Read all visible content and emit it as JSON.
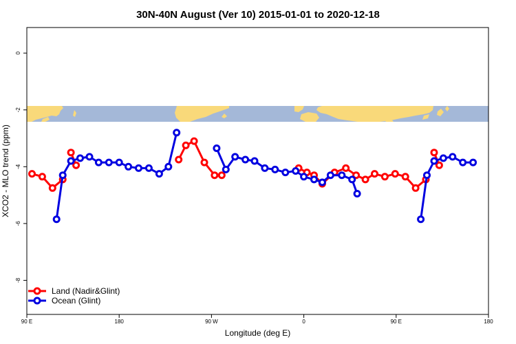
{
  "chart_data": {
    "type": "line",
    "title": "30N-40N August (Ver 10)   2015-01-01 to 2020-12-18",
    "xlabel": "Longitude (deg E)",
    "ylabel": "XCO2 - MLO trend (ppm)",
    "xlim": [
      90,
      540
    ],
    "ylim": [
      -9.2,
      0.9
    ],
    "x_ticks": [
      {
        "value": 90,
        "label": "90 E"
      },
      {
        "value": 180,
        "label": "180"
      },
      {
        "value": 270,
        "label": "90 W"
      },
      {
        "value": 360,
        "label": "0"
      },
      {
        "value": 450,
        "label": "90 E"
      },
      {
        "value": 540,
        "label": "180"
      }
    ],
    "y_ticks": [
      {
        "value": 0,
        "label": "0"
      },
      {
        "value": -2,
        "label": "-2"
      },
      {
        "value": -4,
        "label": "-4"
      },
      {
        "value": -6,
        "label": "-6"
      },
      {
        "value": -8,
        "label": "-8"
      }
    ],
    "grid": false,
    "legend_position": "bottom-left",
    "series": [
      {
        "name": "Land (Nadir&Glint)",
        "color": "#ff0000",
        "segments": [
          [
            [
              95,
              -4.25
            ],
            [
              105,
              -4.35
            ],
            [
              115,
              -4.75
            ],
            [
              125,
              -4.45
            ]
          ],
          [
            [
              133,
              -3.5
            ],
            [
              138,
              -3.95
            ]
          ],
          [
            [
              238,
              -3.75
            ],
            [
              245,
              -3.25
            ],
            [
              253,
              -3.1
            ],
            [
              263,
              -3.85
            ],
            [
              273,
              -4.3
            ],
            [
              280,
              -4.3
            ]
          ],
          [
            [
              355,
              -4.05
            ],
            [
              363,
              -4.2
            ],
            [
              370,
              -4.3
            ],
            [
              378,
              -4.6
            ],
            [
              390,
              -4.2
            ],
            [
              401,
              -4.05
            ],
            [
              411,
              -4.3
            ],
            [
              420,
              -4.45
            ],
            [
              429,
              -4.25
            ],
            [
              439,
              -4.35
            ],
            [
              449,
              -4.25
            ],
            [
              459,
              -4.35
            ],
            [
              469,
              -4.75
            ],
            [
              479,
              -4.45
            ]
          ],
          [
            [
              487,
              -3.5
            ],
            [
              492,
              -3.95
            ]
          ]
        ]
      },
      {
        "name": "Ocean (Glint)",
        "color": "#0000e0",
        "segments": [
          [
            [
              119,
              -5.85
            ],
            [
              125,
              -4.3
            ],
            [
              133,
              -3.8
            ],
            [
              142,
              -3.7
            ],
            [
              151,
              -3.65
            ],
            [
              160,
              -3.85
            ],
            [
              170,
              -3.85
            ],
            [
              180,
              -3.85
            ],
            [
              189,
              -4.0
            ],
            [
              199,
              -4.05
            ],
            [
              209,
              -4.05
            ],
            [
              219,
              -4.25
            ],
            [
              228,
              -4.0
            ],
            [
              236,
              -2.8
            ]
          ],
          [
            [
              275,
              -3.35
            ],
            [
              284,
              -4.1
            ],
            [
              293,
              -3.65
            ],
            [
              303,
              -3.75
            ],
            [
              312,
              -3.8
            ],
            [
              322,
              -4.05
            ],
            [
              332,
              -4.1
            ],
            [
              342,
              -4.2
            ],
            [
              352,
              -4.15
            ],
            [
              360,
              -4.35
            ],
            [
              370,
              -4.45
            ],
            [
              378,
              -4.55
            ],
            [
              386,
              -4.3
            ],
            [
              397,
              -4.3
            ],
            [
              407,
              -4.45
            ],
            [
              412,
              -4.95
            ]
          ],
          [
            [
              474,
              -5.85
            ],
            [
              480,
              -4.3
            ],
            [
              487,
              -3.8
            ],
            [
              496,
              -3.7
            ],
            [
              505,
              -3.65
            ],
            [
              515,
              -3.85
            ],
            [
              525,
              -3.85
            ]
          ]
        ]
      }
    ]
  }
}
